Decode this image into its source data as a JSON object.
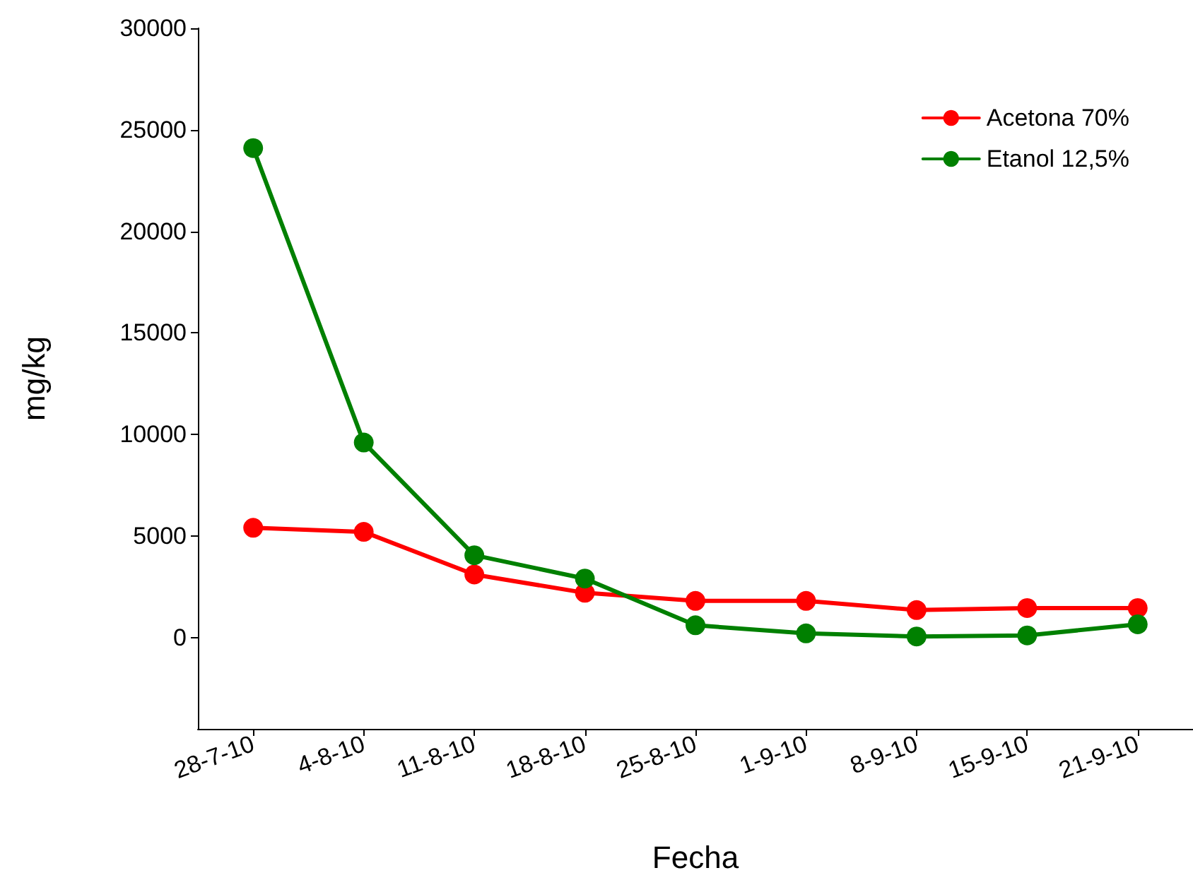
{
  "chart_data": {
    "type": "line",
    "xlabel": "Fecha",
    "ylabel": "mg/kg",
    "categories": [
      "28-7-10",
      "4-8-10",
      "11-8-10",
      "18-8-10",
      "25-8-10",
      "1-9-10",
      "8-9-10",
      "15-9-10",
      "21-9-10"
    ],
    "series": [
      {
        "name": "Acetona 70%",
        "color": "#ff0000",
        "values": [
          5400,
          5200,
          3100,
          2200,
          1800,
          1800,
          1350,
          1450,
          1450
        ]
      },
      {
        "name": "Etanol 12,5%",
        "color": "#008000",
        "values": [
          24100,
          9600,
          4050,
          2900,
          600,
          200,
          50,
          100,
          650
        ]
      }
    ],
    "ylim": [
      -4500,
      30000
    ],
    "yticks": [
      0,
      5000,
      10000,
      15000,
      20000,
      25000,
      30000
    ],
    "grid": false,
    "legend": "top right",
    "marker": "circle",
    "line_style": "solid"
  }
}
